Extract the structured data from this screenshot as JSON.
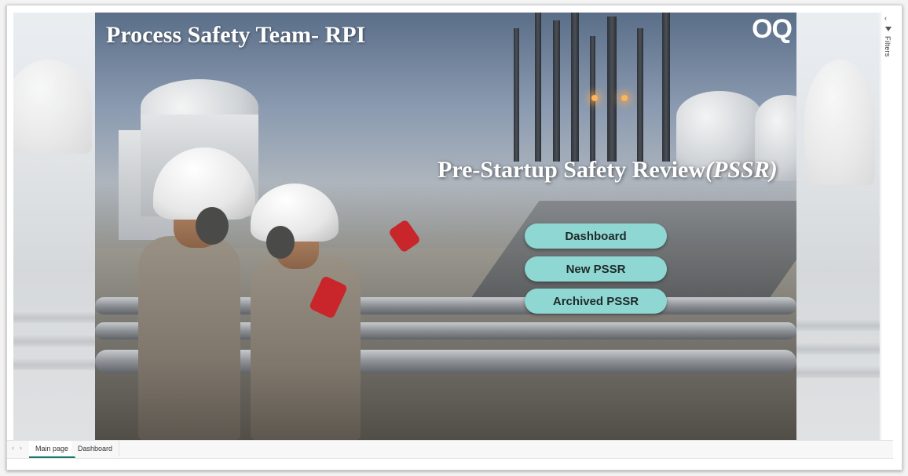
{
  "report": {
    "title": "Process Safety Team- RPI",
    "logo_text": "OQ",
    "subtitle_main": "Pre-Startup Safety Review",
    "subtitle_abbr": "(PSSR)"
  },
  "buttons": {
    "dashboard": "Dashboard",
    "new_pssr": "New PSSR",
    "archived_pssr": "Archived PSSR"
  },
  "filters_pane": {
    "label": "Filters",
    "chevron": "‹"
  },
  "tabs": [
    {
      "label": "Main page",
      "active": true
    },
    {
      "label": "Dashboard",
      "active": false
    }
  ],
  "tab_nav": {
    "prev": "‹",
    "next": "›"
  },
  "colors": {
    "button_bg": "#8fd7d2",
    "active_tab_underline": "#1a7a73"
  },
  "icons": {
    "filter": "funnel-icon",
    "collapse": "chevron-left-icon"
  }
}
